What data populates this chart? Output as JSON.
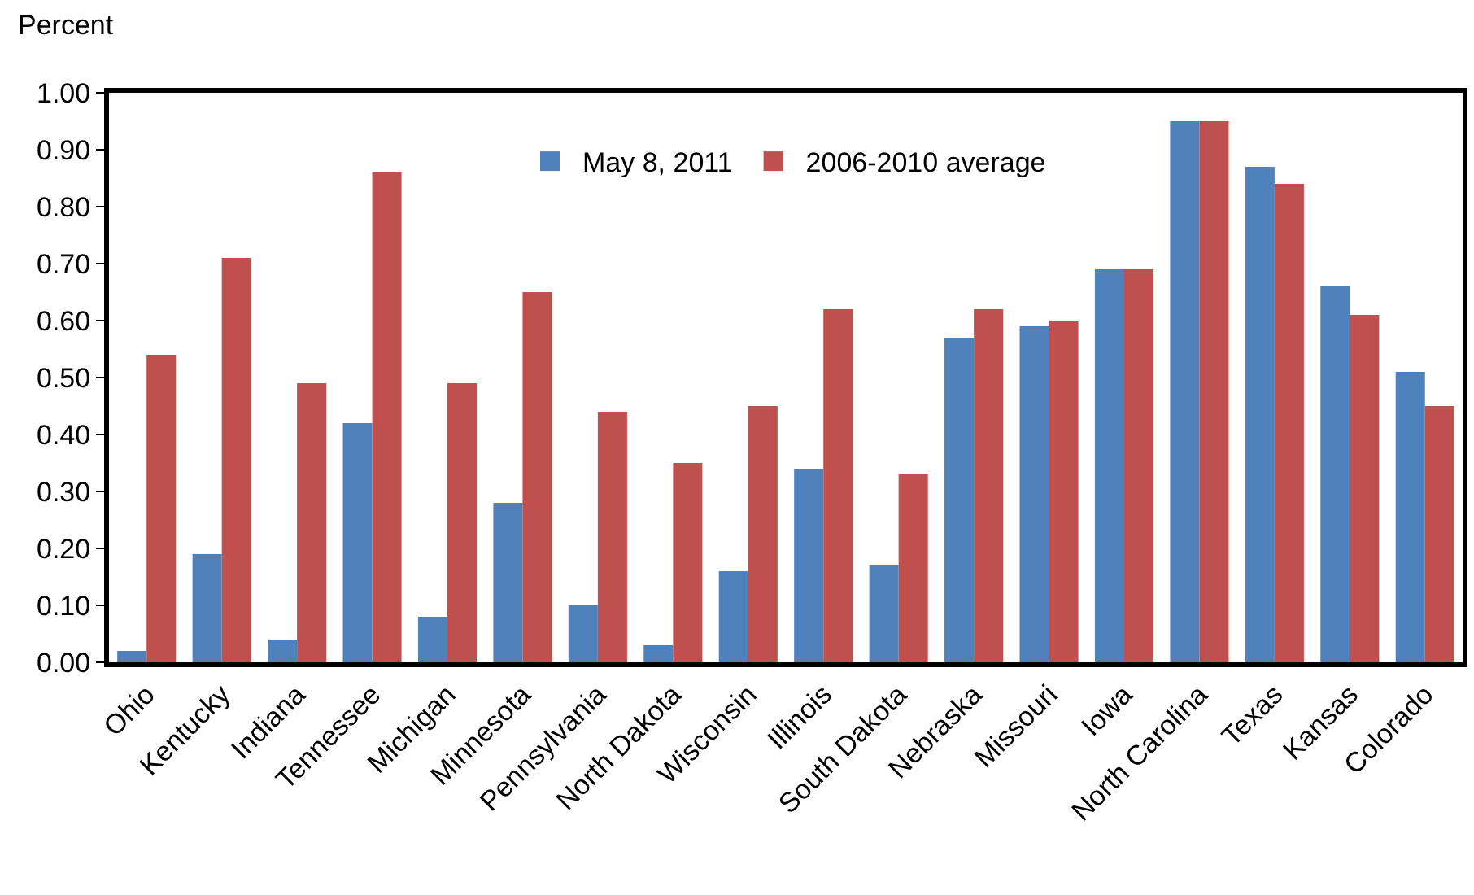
{
  "chart_data": {
    "type": "bar",
    "ylabel": "Percent",
    "categories": [
      "Ohio",
      "Kentucky",
      "Indiana",
      "Tennessee",
      "Michigan",
      "Minnesota",
      "Pennsylvania",
      "North Dakota",
      "Wisconsin",
      "Illinois",
      "South Dakota",
      "Nebraska",
      "Missouri",
      "Iowa",
      "North Carolina",
      "Texas",
      "Kansas",
      "Colorado"
    ],
    "series": [
      {
        "name": "May 8, 2011",
        "color": "#4f81bd",
        "values": [
          0.02,
          0.19,
          0.04,
          0.42,
          0.08,
          0.28,
          0.1,
          0.03,
          0.16,
          0.34,
          0.17,
          0.57,
          0.59,
          0.69,
          0.95,
          0.87,
          0.66,
          0.51
        ]
      },
      {
        "name": "2006-2010 average",
        "color": "#c0504d",
        "values": [
          0.54,
          0.71,
          0.49,
          0.86,
          0.49,
          0.65,
          0.44,
          0.35,
          0.45,
          0.62,
          0.33,
          0.62,
          0.6,
          0.69,
          0.95,
          0.84,
          0.61,
          0.45
        ]
      }
    ],
    "ylim": [
      0,
      1
    ],
    "yticks": [
      {
        "value": 0,
        "label": "0.00"
      },
      {
        "value": 0.1,
        "label": "0.10"
      },
      {
        "value": 0.2,
        "label": "0.20"
      },
      {
        "value": 0.3,
        "label": "0.30"
      },
      {
        "value": 0.4,
        "label": "0.40"
      },
      {
        "value": 0.5,
        "label": "0.50"
      },
      {
        "value": 0.6,
        "label": "0.60"
      },
      {
        "value": 0.7,
        "label": "0.70"
      },
      {
        "value": 0.8,
        "label": "0.80"
      },
      {
        "value": 0.9,
        "label": "0.90"
      },
      {
        "value": 1,
        "label": "1.00"
      }
    ],
    "legend": "top"
  }
}
